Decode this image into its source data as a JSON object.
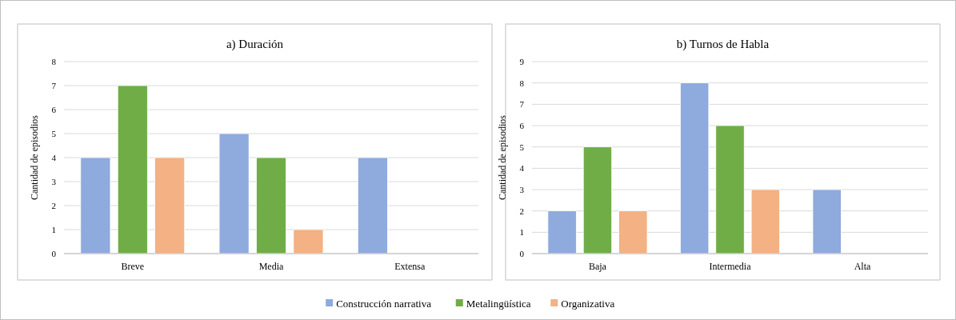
{
  "chart_data": [
    {
      "type": "bar",
      "title": "a)  Duración",
      "ylabel": "Cantidad de episodios",
      "categories": [
        "Breve",
        "Media",
        "Extensa"
      ],
      "series": [
        {
          "name": "Construcción narrativa",
          "color": "#8faadc",
          "values": [
            4,
            5,
            4
          ]
        },
        {
          "name": "Metalingüística",
          "color": "#70ad47",
          "values": [
            7,
            4,
            0
          ]
        },
        {
          "name": "Organizativa",
          "color": "#f4b183",
          "values": [
            4,
            1,
            0
          ]
        }
      ],
      "ylim": [
        0,
        8
      ],
      "yticks": [
        0,
        1,
        2,
        3,
        4,
        5,
        6,
        7,
        8
      ],
      "grid": "y",
      "legend": "bottom"
    },
    {
      "type": "bar",
      "title": "b) Turnos de Habla",
      "ylabel": "Cantidad de episodios",
      "categories": [
        "Baja",
        "Intermedia",
        "Alta"
      ],
      "series": [
        {
          "name": "Construcción narrativa",
          "color": "#8faadc",
          "values": [
            2,
            8,
            3
          ]
        },
        {
          "name": "Metalingüística",
          "color": "#70ad47",
          "values": [
            5,
            6,
            0
          ]
        },
        {
          "name": "Organizativa",
          "color": "#f4b183",
          "values": [
            2,
            3,
            0
          ]
        }
      ],
      "ylim": [
        0,
        9
      ],
      "yticks": [
        0,
        1,
        2,
        3,
        4,
        5,
        6,
        7,
        8,
        9
      ],
      "grid": "y"
    }
  ]
}
